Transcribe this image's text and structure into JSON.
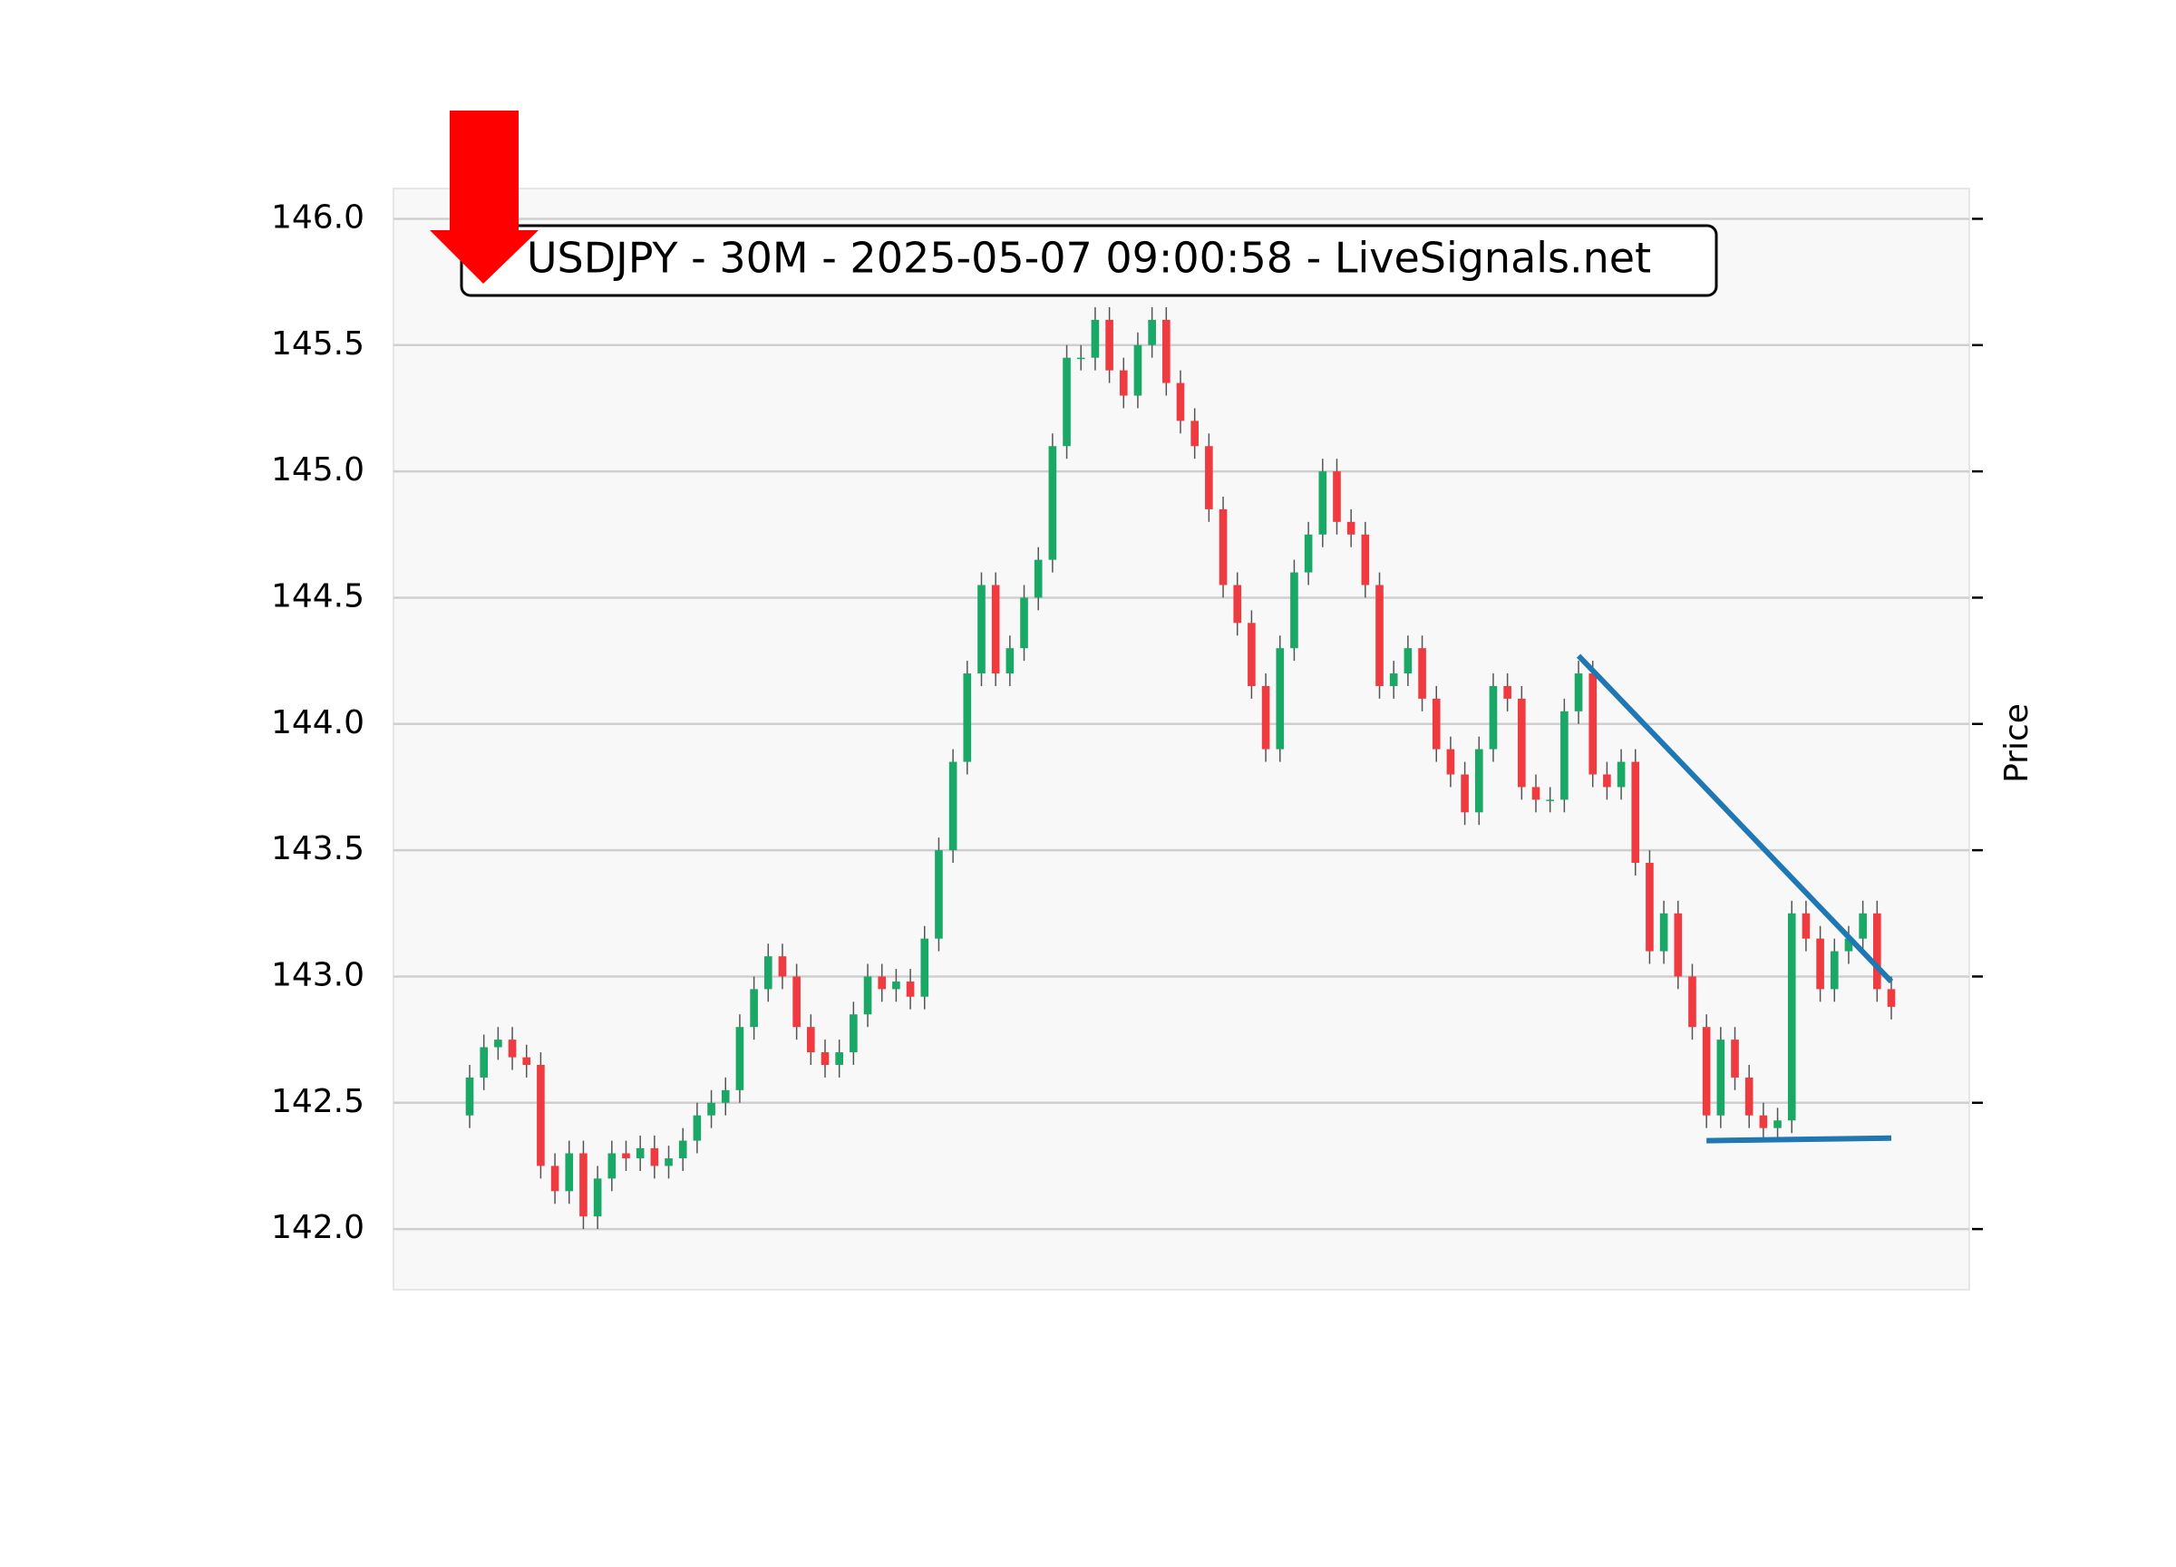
{
  "chart_data": {
    "type": "candlestick",
    "title": "USDJPY - 30M - 2025-05-07 09:00:58 - LiveSignals.net",
    "y_label": "Price",
    "up_color": "#1aa866",
    "down_color": "#ef3b3f",
    "wick_color": "#555555",
    "line_color": "#1f77b4",
    "grid": true,
    "ylim": [
      141.76,
      146.12
    ],
    "yticks": [
      {
        "value": 142,
        "label": "142.0"
      },
      {
        "value": 142.5,
        "label": "142.5"
      },
      {
        "value": 143,
        "label": "143.0"
      },
      {
        "value": 143.5,
        "label": "143.5"
      },
      {
        "value": 144,
        "label": "144.0"
      },
      {
        "value": 144.5,
        "label": "144.5"
      },
      {
        "value": 145,
        "label": "145.0"
      },
      {
        "value": 145.5,
        "label": "145.5"
      },
      {
        "value": 146,
        "label": "146.0"
      }
    ],
    "candles": [
      [
        142.45,
        142.65,
        142.4,
        142.6
      ],
      [
        142.6,
        142.77,
        142.55,
        142.72
      ],
      [
        142.72,
        142.8,
        142.67,
        142.75
      ],
      [
        142.75,
        142.8,
        142.63,
        142.68
      ],
      [
        142.68,
        142.73,
        142.6,
        142.65
      ],
      [
        142.65,
        142.7,
        142.2,
        142.25
      ],
      [
        142.25,
        142.3,
        142.1,
        142.15
      ],
      [
        142.15,
        142.35,
        142.1,
        142.3
      ],
      [
        142.3,
        142.35,
        142.0,
        142.05
      ],
      [
        142.05,
        142.25,
        142.0,
        142.2
      ],
      [
        142.2,
        142.35,
        142.15,
        142.3
      ],
      [
        142.3,
        142.35,
        142.23,
        142.28
      ],
      [
        142.28,
        142.37,
        142.23,
        142.32
      ],
      [
        142.32,
        142.37,
        142.2,
        142.25
      ],
      [
        142.25,
        142.33,
        142.2,
        142.28
      ],
      [
        142.28,
        142.4,
        142.23,
        142.35
      ],
      [
        142.35,
        142.5,
        142.3,
        142.45
      ],
      [
        142.45,
        142.55,
        142.4,
        142.5
      ],
      [
        142.5,
        142.6,
        142.45,
        142.55
      ],
      [
        142.55,
        142.85,
        142.5,
        142.8
      ],
      [
        142.8,
        143.0,
        142.75,
        142.95
      ],
      [
        142.95,
        143.13,
        142.9,
        143.08
      ],
      [
        143.08,
        143.13,
        142.95,
        143.0
      ],
      [
        143.0,
        143.05,
        142.75,
        142.8
      ],
      [
        142.8,
        142.85,
        142.65,
        142.7
      ],
      [
        142.7,
        142.75,
        142.6,
        142.65
      ],
      [
        142.65,
        142.75,
        142.6,
        142.7
      ],
      [
        142.7,
        142.9,
        142.65,
        142.85
      ],
      [
        142.85,
        143.05,
        142.8,
        143.0
      ],
      [
        143.0,
        143.05,
        142.9,
        142.95
      ],
      [
        142.95,
        143.03,
        142.9,
        142.98
      ],
      [
        142.98,
        143.03,
        142.87,
        142.92
      ],
      [
        142.92,
        143.2,
        142.87,
        143.15
      ],
      [
        143.15,
        143.55,
        143.1,
        143.5
      ],
      [
        143.5,
        143.9,
        143.45,
        143.85
      ],
      [
        143.85,
        144.25,
        143.8,
        144.2
      ],
      [
        144.2,
        144.6,
        144.15,
        144.55
      ],
      [
        144.55,
        144.6,
        144.15,
        144.2
      ],
      [
        144.2,
        144.35,
        144.15,
        144.3
      ],
      [
        144.3,
        144.55,
        144.25,
        144.5
      ],
      [
        144.5,
        144.7,
        144.45,
        144.65
      ],
      [
        144.65,
        145.15,
        144.6,
        145.1
      ],
      [
        145.1,
        145.5,
        145.05,
        145.45
      ],
      [
        145.45,
        145.5,
        145.4,
        145.45
      ],
      [
        145.45,
        145.65,
        145.4,
        145.6
      ],
      [
        145.6,
        145.65,
        145.35,
        145.4
      ],
      [
        145.4,
        145.45,
        145.25,
        145.3
      ],
      [
        145.3,
        145.55,
        145.25,
        145.5
      ],
      [
        145.5,
        145.65,
        145.45,
        145.6
      ],
      [
        145.6,
        145.65,
        145.3,
        145.35
      ],
      [
        145.35,
        145.4,
        145.15,
        145.2
      ],
      [
        145.2,
        145.25,
        145.05,
        145.1
      ],
      [
        145.1,
        145.15,
        144.8,
        144.85
      ],
      [
        144.85,
        144.9,
        144.5,
        144.55
      ],
      [
        144.55,
        144.6,
        144.35,
        144.4
      ],
      [
        144.4,
        144.45,
        144.1,
        144.15
      ],
      [
        144.15,
        144.2,
        143.85,
        143.9
      ],
      [
        143.9,
        144.35,
        143.85,
        144.3
      ],
      [
        144.3,
        144.65,
        144.25,
        144.6
      ],
      [
        144.6,
        144.8,
        144.55,
        144.75
      ],
      [
        144.75,
        145.05,
        144.7,
        145.0
      ],
      [
        145.0,
        145.05,
        144.75,
        144.8
      ],
      [
        144.8,
        144.85,
        144.7,
        144.75
      ],
      [
        144.75,
        144.8,
        144.5,
        144.55
      ],
      [
        144.55,
        144.6,
        144.1,
        144.15
      ],
      [
        144.15,
        144.25,
        144.1,
        144.2
      ],
      [
        144.2,
        144.35,
        144.15,
        144.3
      ],
      [
        144.3,
        144.35,
        144.05,
        144.1
      ],
      [
        144.1,
        144.15,
        143.85,
        143.9
      ],
      [
        143.9,
        143.95,
        143.75,
        143.8
      ],
      [
        143.8,
        143.85,
        143.6,
        143.65
      ],
      [
        143.65,
        143.95,
        143.6,
        143.9
      ],
      [
        143.9,
        144.2,
        143.85,
        144.15
      ],
      [
        144.15,
        144.2,
        144.05,
        144.1
      ],
      [
        144.1,
        144.15,
        143.7,
        143.75
      ],
      [
        143.75,
        143.8,
        143.65,
        143.7
      ],
      [
        143.7,
        143.75,
        143.65,
        143.7
      ],
      [
        143.7,
        144.1,
        143.65,
        144.05
      ],
      [
        144.05,
        144.25,
        144.0,
        144.2
      ],
      [
        144.2,
        144.25,
        143.75,
        143.8
      ],
      [
        143.8,
        143.85,
        143.7,
        143.75
      ],
      [
        143.75,
        143.9,
        143.7,
        143.85
      ],
      [
        143.85,
        143.9,
        143.4,
        143.45
      ],
      [
        143.45,
        143.5,
        143.05,
        143.1
      ],
      [
        143.1,
        143.3,
        143.05,
        143.25
      ],
      [
        143.25,
        143.3,
        142.95,
        143.0
      ],
      [
        143.0,
        143.05,
        142.75,
        142.8
      ],
      [
        142.8,
        142.85,
        142.4,
        142.45
      ],
      [
        142.45,
        142.8,
        142.4,
        142.75
      ],
      [
        142.75,
        142.8,
        142.55,
        142.6
      ],
      [
        142.6,
        142.65,
        142.4,
        142.45
      ],
      [
        142.45,
        142.5,
        142.35,
        142.4
      ],
      [
        142.4,
        142.48,
        142.35,
        142.43
      ],
      [
        142.43,
        143.3,
        142.38,
        143.25
      ],
      [
        143.25,
        143.3,
        143.1,
        143.15
      ],
      [
        143.15,
        143.2,
        142.9,
        142.95
      ],
      [
        142.95,
        143.15,
        142.9,
        143.1
      ],
      [
        143.1,
        143.2,
        143.05,
        143.15
      ],
      [
        143.15,
        143.3,
        143.1,
        143.25
      ],
      [
        143.25,
        143.3,
        142.9,
        142.95
      ],
      [
        142.95,
        143.0,
        142.83,
        142.88
      ]
    ],
    "trendlines": [
      {
        "x": [
          78,
          100
        ],
        "y": [
          144.27,
          142.98
        ]
      },
      {
        "x": [
          87,
          100
        ],
        "y": [
          142.35,
          142.36
        ]
      }
    ]
  }
}
